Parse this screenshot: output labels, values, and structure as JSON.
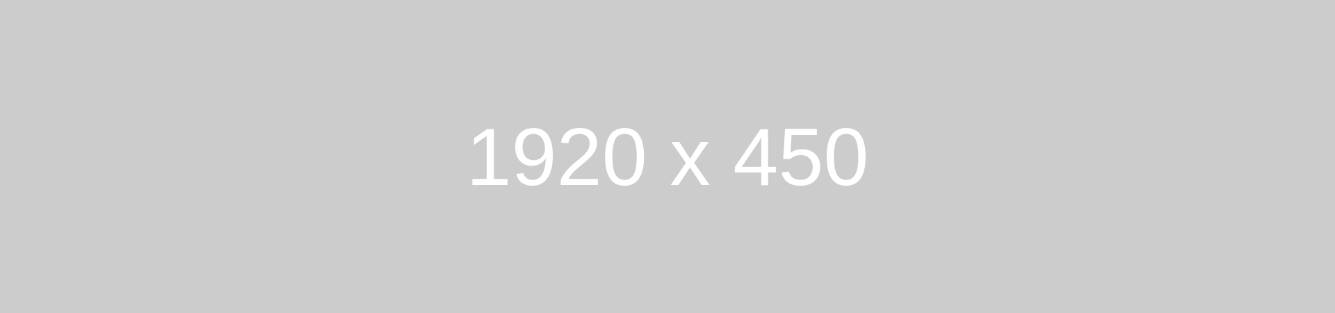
{
  "placeholder": {
    "label": "1920 x 450",
    "background_color": "#cccccc",
    "text_color": "#ffffff"
  }
}
